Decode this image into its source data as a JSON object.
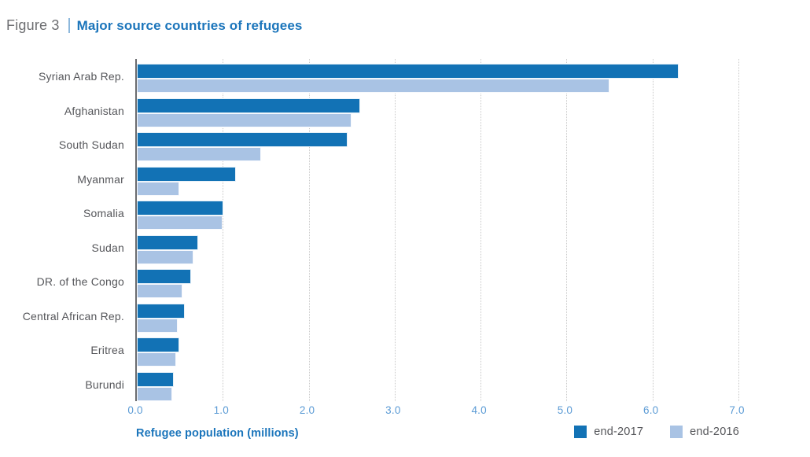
{
  "header": {
    "figure_label": "Figure 3",
    "title": "Major source countries of refugees"
  },
  "chart_data": {
    "type": "bar",
    "orientation": "horizontal",
    "title": "Major source countries of refugees",
    "categories": [
      "Syrian Arab Rep.",
      "Afghanistan",
      "South Sudan",
      "Myanmar",
      "Somalia",
      "Sudan",
      "DR. of the Congo",
      "Central African Rep.",
      "Eritrea",
      "Burundi"
    ],
    "series": [
      {
        "name": "end-2017",
        "color": "#1272b5",
        "values": [
          6.3,
          2.6,
          2.45,
          1.15,
          1.01,
          0.71,
          0.63,
          0.56,
          0.49,
          0.43
        ]
      },
      {
        "name": "end-2016",
        "color": "#a9c3e4",
        "values": [
          5.5,
          2.5,
          1.45,
          0.49,
          1.0,
          0.66,
          0.53,
          0.48,
          0.46,
          0.41
        ]
      }
    ],
    "xlabel": "Refugee population (millions)",
    "xlim": [
      0,
      7
    ],
    "xticks": [
      "0.0",
      "1.0",
      "2.0",
      "3.0",
      "4.0",
      "5.0",
      "6.0",
      "7.0"
    ],
    "grid": "vertical-dotted",
    "legend_position": "bottom-right"
  },
  "colors": {
    "accent_blue": "#1b75bb",
    "tick_blue": "#5b9bd5",
    "label_gray": "#55565a",
    "figure_label_gray": "#6d6e71"
  }
}
